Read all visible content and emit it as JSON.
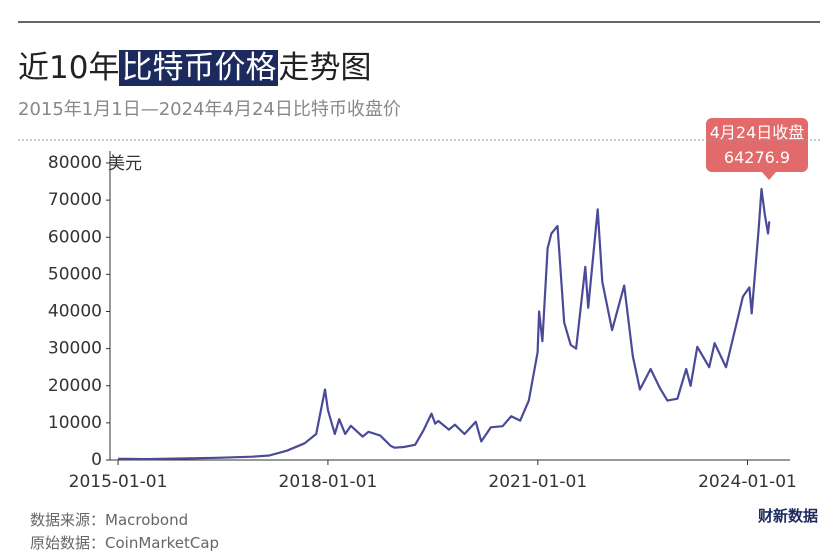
{
  "chart_data": {
    "type": "line",
    "title": [
      {
        "text": "近10年"
      },
      {
        "text": "比特币价格",
        "highlight": true
      },
      {
        "text": "走势图"
      }
    ],
    "subtitle": "2015年1月1日—2024年4月24日比特币收盘价",
    "y_unit": "美元",
    "annotation": "4月24日收盘",
    "sources": [
      "数据来源：Macrobond",
      "原始数据：CoinMarketCap"
    ],
    "logo": "财新数据",
    "color": "#4b4a98",
    "x": [
      "2015-01-01",
      "2015-06-01",
      "2015-12-01",
      "2016-06-01",
      "2016-12-01",
      "2017-03-01",
      "2017-06-01",
      "2017-09-01",
      "2017-11-01",
      "2017-12-17",
      "2018-01-01",
      "2018-02-06",
      "2018-03-01",
      "2018-04-01",
      "2018-05-01",
      "2018-07-01",
      "2018-08-01",
      "2018-10-01",
      "2018-11-25",
      "2018-12-15",
      "2019-02-01",
      "2019-04-01",
      "2019-05-15",
      "2019-06-26",
      "2019-07-15",
      "2019-08-01",
      "2019-09-25",
      "2019-10-26",
      "2019-12-15",
      "2020-02-12",
      "2020-03-12",
      "2020-05-01",
      "2020-07-01",
      "2020-08-15",
      "2020-10-01",
      "2020-11-15",
      "2020-12-31",
      "2021-01-08",
      "2021-01-25",
      "2021-02-21",
      "2021-03-13",
      "2021-04-14",
      "2021-05-19",
      "2021-06-22",
      "2021-07-20",
      "2021-09-06",
      "2021-09-21",
      "2021-11-10",
      "2021-12-04",
      "2022-01-24",
      "2022-03-28",
      "2022-05-12",
      "2022-06-18",
      "2022-08-13",
      "2022-10-01",
      "2022-11-09",
      "2022-12-31",
      "2023-02-15",
      "2023-03-10",
      "2023-04-14",
      "2023-06-15",
      "2023-07-13",
      "2023-09-11",
      "2023-10-25",
      "2023-12-08",
      "2024-01-11",
      "2024-01-23",
      "2024-02-28",
      "2024-03-14",
      "2024-04-01",
      "2024-04-17",
      "2024-04-24"
    ],
    "values": [
      320,
      230,
      400,
      600,
      900,
      1200,
      2500,
      4500,
      7000,
      19000,
      13500,
      7000,
      11000,
      7000,
      9200,
      6300,
      7600,
      6600,
      3800,
      3300,
      3500,
      4100,
      8000,
      12500,
      9800,
      10500,
      8200,
      9500,
      7000,
      10300,
      5000,
      8800,
      9100,
      11800,
      10600,
      16000,
      29000,
      40000,
      32000,
      57000,
      61000,
      63000,
      37000,
      31000,
      30000,
      52000,
      41000,
      67500,
      48000,
      35000,
      47000,
      28000,
      19000,
      24500,
      19300,
      16000,
      16500,
      24500,
      20000,
      30500,
      25000,
      31500,
      25000,
      34500,
      44000,
      46500,
      39500,
      62000,
      73000,
      66000,
      61000,
      64276.9
    ],
    "xlim": [
      "2014-11-20",
      "2024-08-10"
    ],
    "xticks": [
      "2015-01-01",
      "2018-01-01",
      "2021-01-01",
      "2024-01-01"
    ],
    "ylim": [
      0,
      80000
    ],
    "yticks": [
      0,
      10000,
      20000,
      30000,
      40000,
      50000,
      60000,
      70000,
      80000
    ]
  }
}
